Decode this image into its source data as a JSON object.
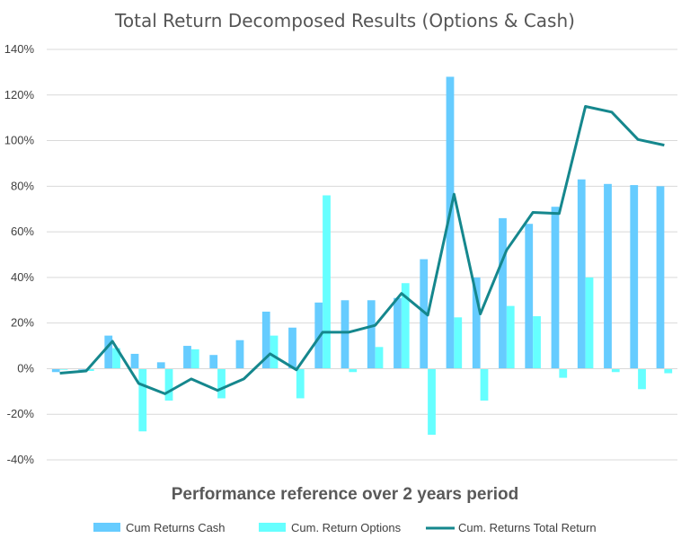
{
  "chart_data": {
    "type": "bar",
    "title": "Total Return Decomposed Results (Options & Cash)",
    "xlabel": "Performance reference over 2 years period",
    "ylabel": "",
    "ylim": [
      -40,
      140
    ],
    "yticks": [
      -40,
      -20,
      0,
      20,
      40,
      60,
      80,
      100,
      120,
      140
    ],
    "ytick_labels": [
      "-40%",
      "-20%",
      "0%",
      "20%",
      "40%",
      "60%",
      "80%",
      "100%",
      "120%",
      "140%"
    ],
    "grid": true,
    "legend_position": "bottom",
    "series": [
      {
        "name": "Cum Returns Cash",
        "type": "bar",
        "color": "#66ccff",
        "values": [
          -1.5,
          -0.5,
          14.5,
          6.5,
          2.8,
          10,
          6,
          12.5,
          25,
          18,
          29,
          30,
          30,
          31,
          48,
          128,
          40,
          66,
          63.5,
          71,
          83,
          81,
          80.5,
          80
        ]
      },
      {
        "name": "Cum. Return Options",
        "type": "bar",
        "color": "#66ffff",
        "values": [
          -0.5,
          -1,
          9,
          -27.5,
          -14,
          8.5,
          -13,
          0,
          14.5,
          -13,
          76,
          -1.5,
          9.5,
          37.5,
          -29,
          22.5,
          -14,
          27.5,
          23,
          -4,
          40,
          -1.5,
          -9,
          -2
        ]
      },
      {
        "name": "Cum. Returns Total Return",
        "type": "line",
        "color": "#15878d",
        "values": [
          -2,
          -1,
          12,
          -6.5,
          -11,
          -4.5,
          -9.5,
          -4.5,
          6.5,
          -0.5,
          16,
          16,
          19,
          33,
          23.5,
          76.5,
          24,
          52,
          68.5,
          68,
          115,
          112.5,
          100.5,
          98
        ]
      }
    ]
  }
}
